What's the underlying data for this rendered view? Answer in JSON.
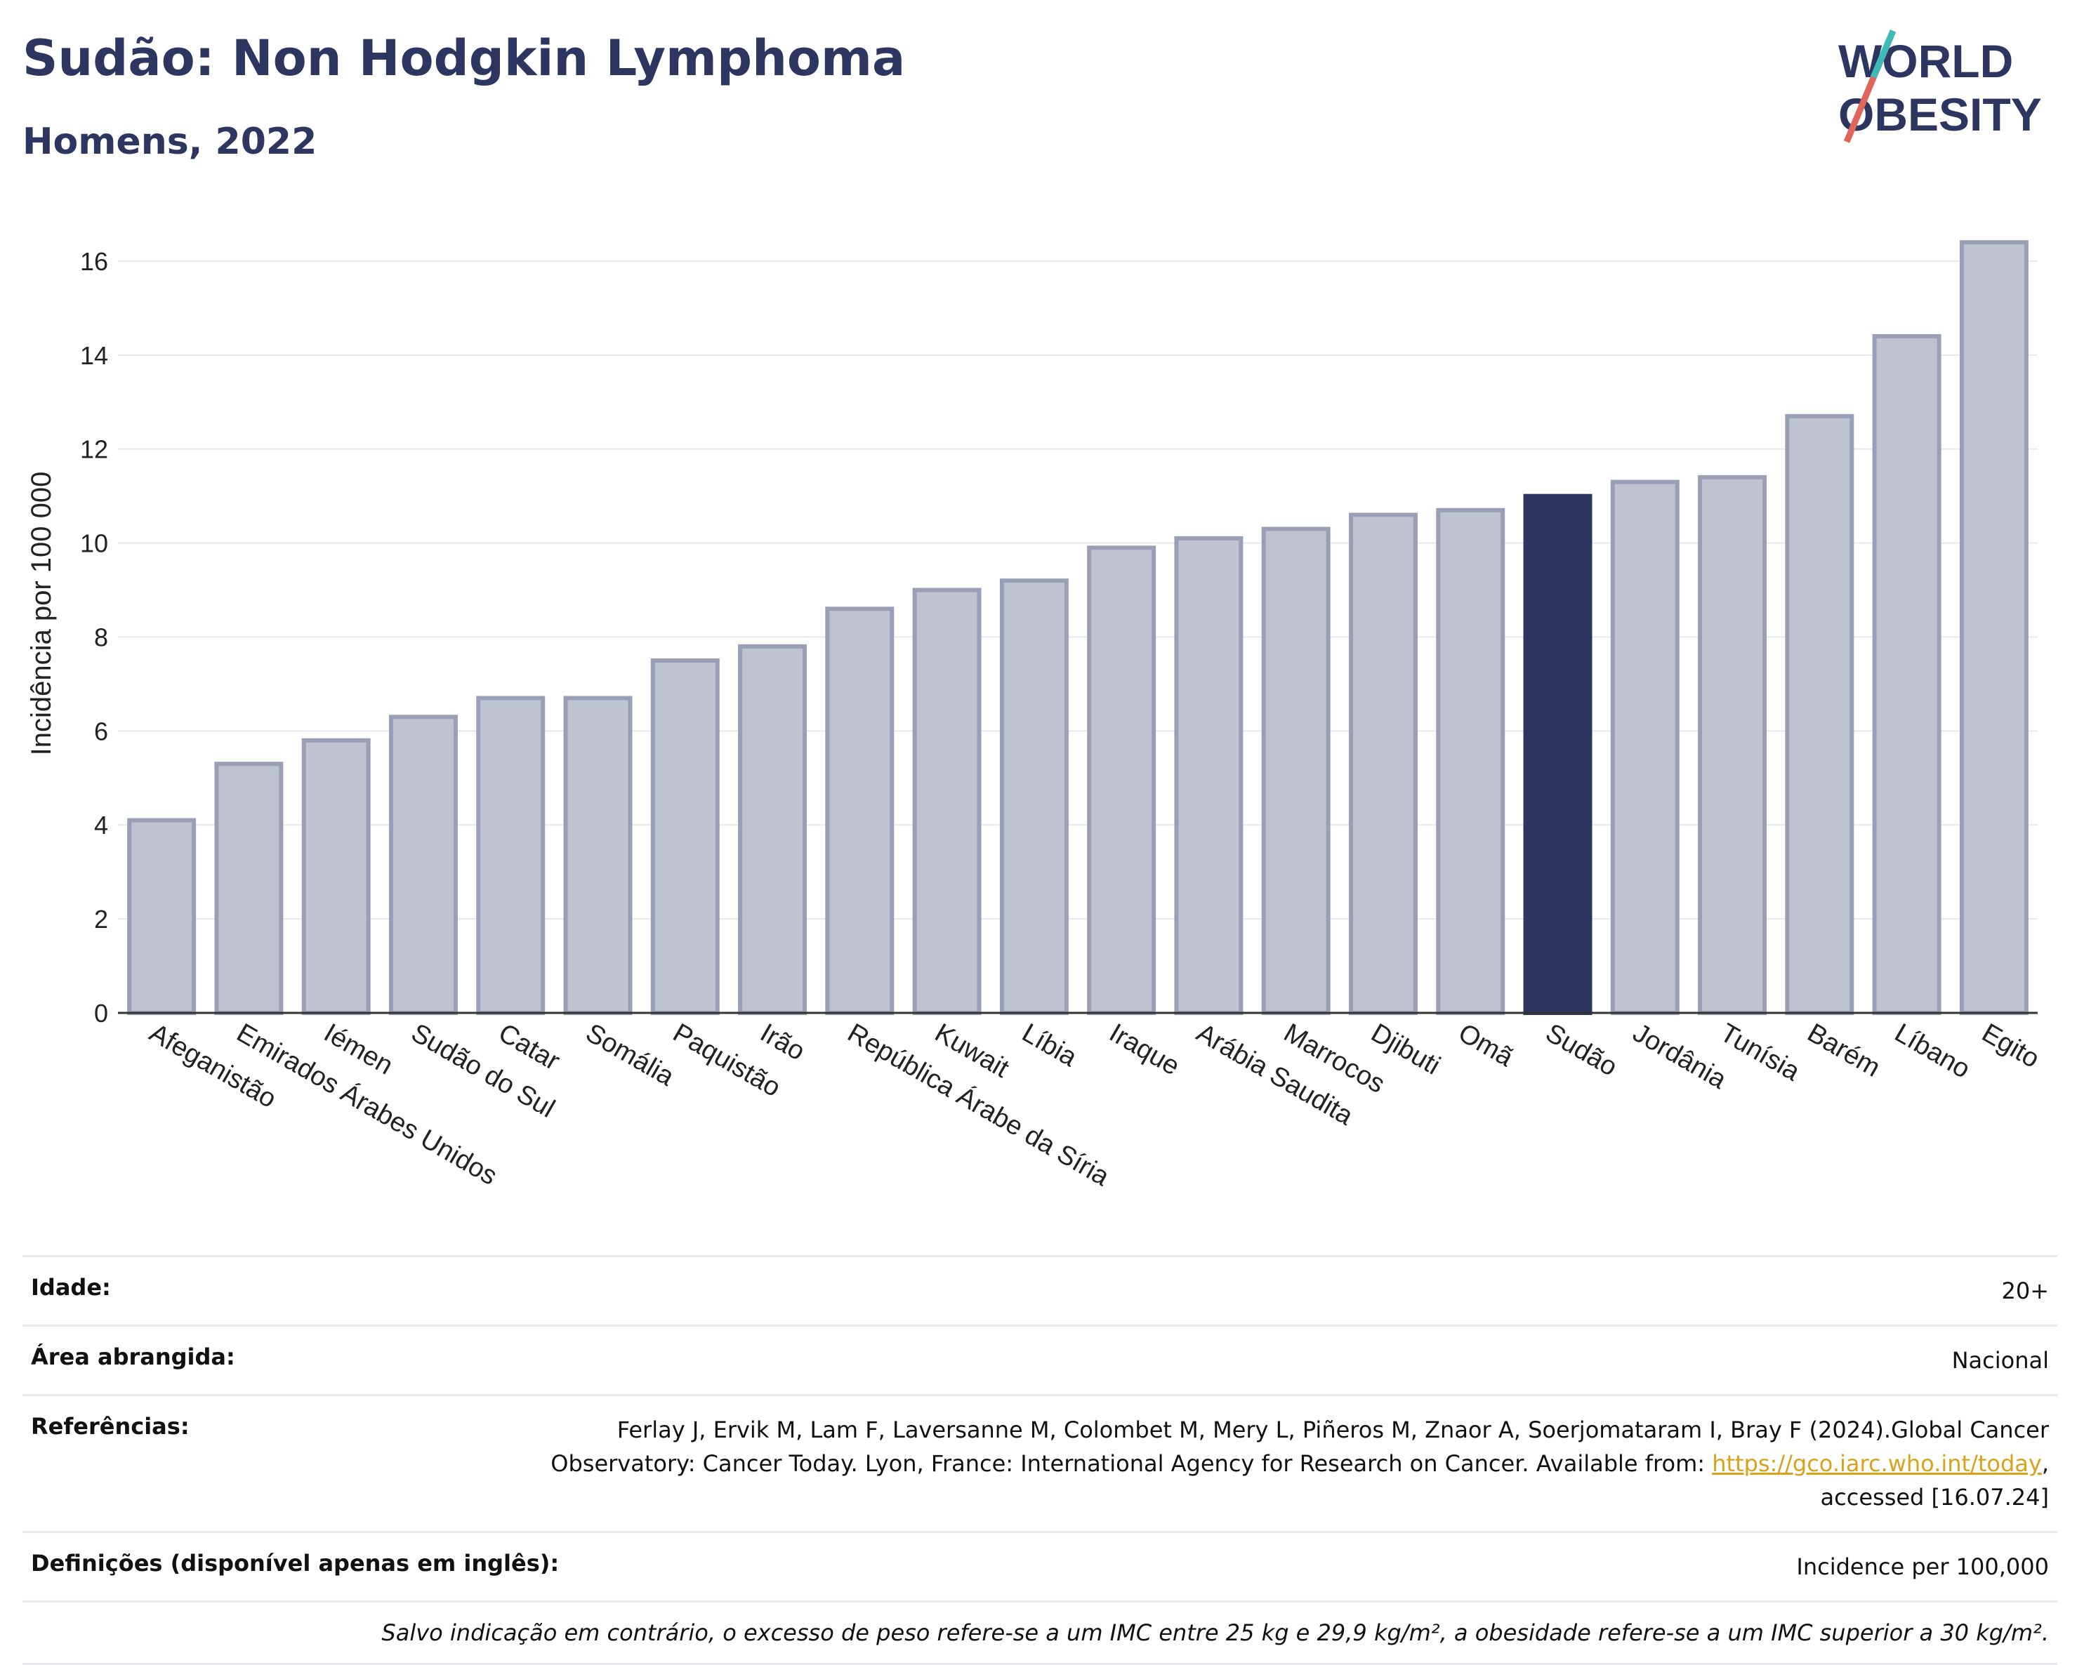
{
  "header": {
    "title": "Sudão: Non Hodgkin Lymphoma",
    "subtitle": "Homens, 2022",
    "logo_line1": "WORLD",
    "logo_line2": "OBESITY"
  },
  "chart_data": {
    "type": "bar",
    "ylabel": "Incidência por 100 000",
    "ylim": [
      0,
      17
    ],
    "yticks": [
      0,
      2,
      4,
      6,
      8,
      10,
      12,
      14,
      16
    ],
    "grid": true,
    "categories": [
      "Afeganistão",
      "Emirados Árabes Unidos",
      "Iémen",
      "Sudão do Sul",
      "Catar",
      "Somália",
      "Paquistão",
      "Irão",
      "República Árabe da Síria",
      "Kuwait",
      "Líbia",
      "Iraque",
      "Arábia Saudita",
      "Marrocos",
      "Djibuti",
      "Omã",
      "Sudão",
      "Jordânia",
      "Tunísia",
      "Barém",
      "Líbano",
      "Egito"
    ],
    "values": [
      4.1,
      5.3,
      5.8,
      6.3,
      6.7,
      6.7,
      7.5,
      7.8,
      8.6,
      9.0,
      9.2,
      9.9,
      10.1,
      10.3,
      10.6,
      10.7,
      11.0,
      11.3,
      11.4,
      12.7,
      14.4,
      16.4
    ],
    "highlight": "Sudão",
    "colors": {
      "bar": "#bfc2d0",
      "bar_border": "#9a9fb6",
      "highlight": "#2b3560"
    }
  },
  "meta": {
    "age_label": "Idade:",
    "age_value": "20+",
    "area_label": "Área abrangida:",
    "area_value": "Nacional",
    "ref_label": "Referências:",
    "ref_text_1": "Ferlay J, Ervik M, Lam F, Laversanne M, Colombet M, Mery L, Piñeros M, Znaor A, Soerjomataram I, Bray F (2024).Global Cancer Observatory: Cancer Today. Lyon, France: International Agency for Research on Cancer. Available from: ",
    "ref_link": "https://gco.iarc.who.int/today",
    "ref_text_2": ", accessed [16.07.24]",
    "def_label": "Definições (disponível apenas em inglês):",
    "def_value": "Incidence per 100,000",
    "note": "Salvo indicação em contrário, o excesso de peso refere-se a um IMC entre 25 kg e 29,9 kg/m², a obesidade refere-se a um IMC superior a 30 kg/m²."
  }
}
